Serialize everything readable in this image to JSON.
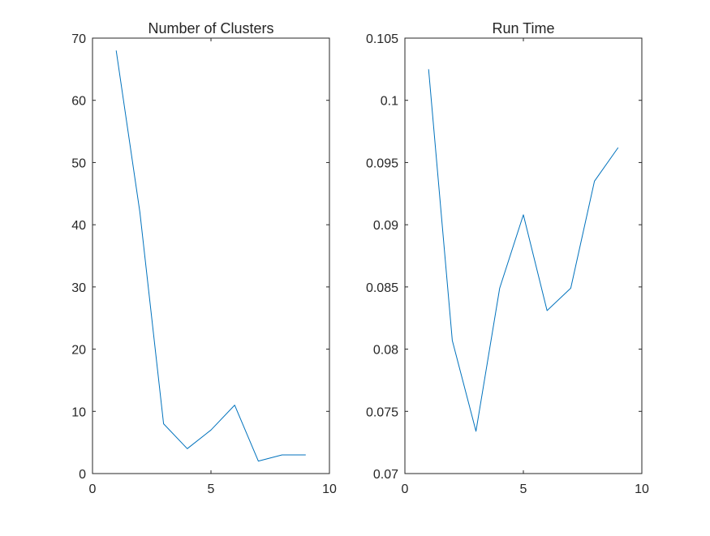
{
  "chart_data": [
    {
      "type": "line",
      "title": "Number of Clusters",
      "xlabel": "",
      "ylabel": "",
      "xlim": [
        0,
        10
      ],
      "ylim": [
        0,
        70
      ],
      "xticks": [
        0,
        5,
        10
      ],
      "yticks": [
        0,
        10,
        20,
        30,
        40,
        50,
        60,
        70
      ],
      "xtick_labels": [
        "0",
        "5",
        "10"
      ],
      "ytick_labels": [
        "0",
        "10",
        "20",
        "30",
        "40",
        "50",
        "60",
        "70"
      ],
      "grid": false,
      "series": [
        {
          "color": "#0072bd",
          "x": [
            1,
            2,
            3,
            4,
            5,
            6,
            7,
            8,
            9
          ],
          "y": [
            68,
            42,
            8,
            4,
            7,
            11,
            2,
            3,
            3
          ]
        }
      ]
    },
    {
      "type": "line",
      "title": "Run Time",
      "xlabel": "",
      "ylabel": "",
      "xlim": [
        0,
        10
      ],
      "ylim": [
        0.07,
        0.105
      ],
      "xticks": [
        0,
        5,
        10
      ],
      "yticks": [
        0.07,
        0.075,
        0.08,
        0.085,
        0.09,
        0.095,
        0.1,
        0.105
      ],
      "xtick_labels": [
        "0",
        "5",
        "10"
      ],
      "ytick_labels": [
        "0.07",
        "0.075",
        "0.08",
        "0.085",
        "0.09",
        "0.095",
        "0.1",
        "0.105"
      ],
      "grid": false,
      "series": [
        {
          "color": "#0072bd",
          "x": [
            1,
            2,
            3,
            4,
            5,
            6,
            7,
            8,
            9
          ],
          "y": [
            0.1025,
            0.0807,
            0.0734,
            0.0849,
            0.0908,
            0.0831,
            0.0849,
            0.0935,
            0.0962
          ]
        }
      ]
    }
  ]
}
